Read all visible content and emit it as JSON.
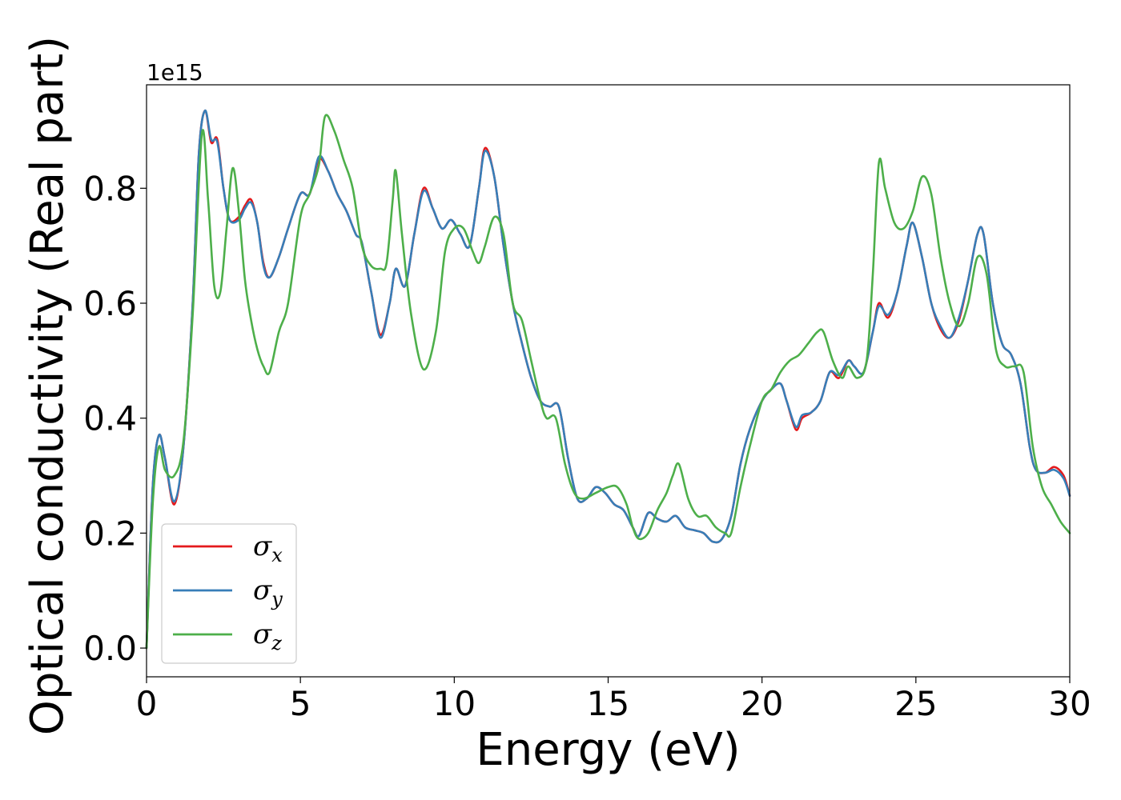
{
  "chart_data": {
    "type": "line",
    "xlabel": "Energy (eV)",
    "ylabel": "Optical conductivity (Real part)",
    "y_offset_label": "1e15",
    "xlim": [
      0,
      30
    ],
    "ylim": [
      -0.05,
      0.98
    ],
    "x_ticks": [
      0,
      5,
      10,
      15,
      20,
      25,
      30
    ],
    "x_tick_labels": [
      "0",
      "5",
      "10",
      "15",
      "20",
      "25",
      "30"
    ],
    "y_ticks": [
      0.0,
      0.2,
      0.4,
      0.6,
      0.8
    ],
    "y_tick_labels": [
      "0.0",
      "0.2",
      "0.4",
      "0.6",
      "0.8"
    ],
    "grid": false,
    "legend_position": "lower-left",
    "series": [
      {
        "name": "σx",
        "symbol": "σ",
        "subscript": "x",
        "color": "#e41a1c",
        "x": [
          0,
          0.2,
          0.4,
          0.6,
          0.9,
          1.2,
          1.5,
          1.7,
          1.9,
          2.1,
          2.3,
          2.5,
          2.7,
          3.0,
          3.2,
          3.4,
          3.6,
          3.8,
          4.0,
          4.3,
          4.6,
          5.0,
          5.3,
          5.6,
          5.9,
          6.2,
          6.5,
          6.8,
          7.0,
          7.3,
          7.6,
          7.9,
          8.1,
          8.4,
          8.7,
          9.0,
          9.3,
          9.6,
          9.9,
          10.2,
          10.5,
          10.8,
          11.0,
          11.3,
          11.6,
          11.9,
          12.2,
          12.5,
          12.8,
          13.1,
          13.4,
          13.7,
          14.0,
          14.3,
          14.6,
          14.9,
          15.2,
          15.5,
          15.8,
          16.0,
          16.3,
          16.6,
          16.9,
          17.2,
          17.5,
          17.8,
          18.1,
          18.4,
          18.7,
          19.0,
          19.3,
          19.6,
          20.0,
          20.3,
          20.6,
          20.8,
          21.1,
          21.3,
          21.6,
          21.9,
          22.2,
          22.5,
          22.8,
          23.0,
          23.3,
          23.6,
          23.8,
          24.1,
          24.4,
          24.7,
          24.9,
          25.2,
          25.5,
          25.8,
          26.1,
          26.4,
          26.7,
          27.0,
          27.2,
          27.5,
          27.8,
          28.1,
          28.4,
          28.7,
          28.9,
          29.2,
          29.5,
          29.8,
          30.0
        ],
        "values": [
          0.0,
          0.28,
          0.37,
          0.33,
          0.25,
          0.35,
          0.6,
          0.86,
          0.935,
          0.88,
          0.885,
          0.8,
          0.745,
          0.75,
          0.77,
          0.78,
          0.74,
          0.67,
          0.645,
          0.68,
          0.73,
          0.79,
          0.79,
          0.85,
          0.83,
          0.79,
          0.76,
          0.72,
          0.705,
          0.62,
          0.545,
          0.6,
          0.66,
          0.63,
          0.72,
          0.8,
          0.765,
          0.73,
          0.745,
          0.72,
          0.7,
          0.8,
          0.87,
          0.82,
          0.7,
          0.6,
          0.53,
          0.47,
          0.43,
          0.42,
          0.42,
          0.33,
          0.26,
          0.26,
          0.28,
          0.27,
          0.25,
          0.24,
          0.21,
          0.195,
          0.235,
          0.225,
          0.22,
          0.23,
          0.21,
          0.205,
          0.2,
          0.185,
          0.19,
          0.23,
          0.32,
          0.38,
          0.43,
          0.45,
          0.46,
          0.43,
          0.38,
          0.4,
          0.41,
          0.43,
          0.48,
          0.47,
          0.5,
          0.49,
          0.48,
          0.55,
          0.6,
          0.575,
          0.62,
          0.7,
          0.74,
          0.68,
          0.6,
          0.555,
          0.54,
          0.57,
          0.64,
          0.72,
          0.72,
          0.6,
          0.53,
          0.51,
          0.46,
          0.35,
          0.31,
          0.305,
          0.315,
          0.3,
          0.265
        ]
      },
      {
        "name": "σy",
        "symbol": "σ",
        "subscript": "y",
        "color": "#377eb8",
        "x": [
          0,
          0.2,
          0.4,
          0.6,
          0.9,
          1.2,
          1.5,
          1.7,
          1.9,
          2.1,
          2.3,
          2.5,
          2.7,
          3.0,
          3.2,
          3.4,
          3.6,
          3.8,
          4.0,
          4.3,
          4.6,
          5.0,
          5.3,
          5.6,
          5.9,
          6.2,
          6.5,
          6.8,
          7.0,
          7.3,
          7.6,
          7.9,
          8.1,
          8.4,
          8.7,
          9.0,
          9.3,
          9.6,
          9.9,
          10.2,
          10.5,
          10.8,
          11.0,
          11.3,
          11.6,
          11.9,
          12.2,
          12.5,
          12.8,
          13.1,
          13.4,
          13.7,
          14.0,
          14.3,
          14.6,
          14.9,
          15.2,
          15.5,
          15.8,
          16.0,
          16.3,
          16.6,
          16.9,
          17.2,
          17.5,
          17.8,
          18.1,
          18.4,
          18.7,
          19.0,
          19.3,
          19.6,
          20.0,
          20.3,
          20.6,
          20.8,
          21.1,
          21.3,
          21.6,
          21.9,
          22.2,
          22.5,
          22.8,
          23.0,
          23.3,
          23.6,
          23.8,
          24.1,
          24.4,
          24.7,
          24.9,
          25.2,
          25.5,
          25.8,
          26.1,
          26.4,
          26.7,
          27.0,
          27.2,
          27.5,
          27.8,
          28.1,
          28.4,
          28.7,
          28.9,
          29.2,
          29.5,
          29.8,
          30.0
        ],
        "values": [
          0.0,
          0.28,
          0.37,
          0.33,
          0.255,
          0.35,
          0.6,
          0.86,
          0.935,
          0.885,
          0.88,
          0.8,
          0.745,
          0.745,
          0.765,
          0.775,
          0.74,
          0.665,
          0.645,
          0.68,
          0.73,
          0.79,
          0.79,
          0.855,
          0.83,
          0.79,
          0.76,
          0.72,
          0.705,
          0.62,
          0.54,
          0.6,
          0.66,
          0.63,
          0.72,
          0.795,
          0.765,
          0.73,
          0.745,
          0.72,
          0.7,
          0.8,
          0.865,
          0.82,
          0.7,
          0.6,
          0.53,
          0.47,
          0.43,
          0.42,
          0.42,
          0.33,
          0.26,
          0.26,
          0.28,
          0.27,
          0.25,
          0.24,
          0.21,
          0.195,
          0.235,
          0.225,
          0.22,
          0.23,
          0.21,
          0.205,
          0.2,
          0.185,
          0.19,
          0.23,
          0.32,
          0.38,
          0.43,
          0.45,
          0.46,
          0.43,
          0.385,
          0.405,
          0.41,
          0.43,
          0.48,
          0.475,
          0.5,
          0.49,
          0.48,
          0.55,
          0.595,
          0.58,
          0.62,
          0.7,
          0.74,
          0.68,
          0.6,
          0.56,
          0.54,
          0.575,
          0.64,
          0.72,
          0.72,
          0.6,
          0.53,
          0.51,
          0.46,
          0.35,
          0.31,
          0.305,
          0.31,
          0.295,
          0.265
        ]
      },
      {
        "name": "σz",
        "symbol": "σ",
        "subscript": "z",
        "color": "#4daf4a",
        "x": [
          0,
          0.2,
          0.4,
          0.6,
          0.9,
          1.2,
          1.5,
          1.8,
          2.0,
          2.2,
          2.4,
          2.6,
          2.8,
          3.0,
          3.2,
          3.4,
          3.6,
          3.8,
          4.0,
          4.3,
          4.6,
          5.0,
          5.3,
          5.6,
          5.8,
          6.1,
          6.4,
          6.7,
          7.0,
          7.3,
          7.6,
          7.8,
          8.0,
          8.1,
          8.3,
          8.6,
          9.0,
          9.4,
          9.7,
          10.0,
          10.3,
          10.6,
          10.8,
          11.0,
          11.3,
          11.6,
          11.9,
          12.2,
          12.5,
          12.8,
          13.0,
          13.3,
          13.6,
          13.9,
          14.2,
          14.6,
          15.0,
          15.3,
          15.6,
          15.8,
          16.0,
          16.3,
          16.6,
          16.9,
          17.1,
          17.3,
          17.6,
          17.9,
          18.2,
          18.5,
          18.8,
          19.0,
          19.3,
          19.6,
          20.0,
          20.3,
          20.6,
          20.9,
          21.2,
          21.5,
          21.8,
          22.0,
          22.3,
          22.6,
          22.8,
          23.1,
          23.4,
          23.6,
          23.8,
          24.0,
          24.3,
          24.6,
          24.9,
          25.2,
          25.5,
          25.8,
          26.1,
          26.4,
          26.7,
          27.0,
          27.3,
          27.6,
          27.9,
          28.2,
          28.5,
          28.8,
          29.1,
          29.4,
          29.7,
          30.0
        ],
        "values": [
          0.0,
          0.25,
          0.35,
          0.31,
          0.3,
          0.36,
          0.58,
          0.895,
          0.78,
          0.63,
          0.62,
          0.73,
          0.835,
          0.76,
          0.64,
          0.57,
          0.52,
          0.49,
          0.48,
          0.55,
          0.6,
          0.75,
          0.79,
          0.84,
          0.925,
          0.9,
          0.85,
          0.8,
          0.7,
          0.665,
          0.66,
          0.67,
          0.78,
          0.83,
          0.72,
          0.58,
          0.485,
          0.55,
          0.69,
          0.73,
          0.73,
          0.69,
          0.67,
          0.7,
          0.75,
          0.72,
          0.6,
          0.57,
          0.5,
          0.43,
          0.4,
          0.4,
          0.32,
          0.27,
          0.26,
          0.27,
          0.28,
          0.28,
          0.25,
          0.21,
          0.19,
          0.2,
          0.24,
          0.27,
          0.3,
          0.32,
          0.26,
          0.23,
          0.23,
          0.21,
          0.2,
          0.2,
          0.28,
          0.35,
          0.43,
          0.45,
          0.48,
          0.5,
          0.51,
          0.53,
          0.55,
          0.55,
          0.5,
          0.47,
          0.49,
          0.47,
          0.5,
          0.65,
          0.845,
          0.8,
          0.74,
          0.73,
          0.76,
          0.82,
          0.79,
          0.68,
          0.6,
          0.56,
          0.6,
          0.68,
          0.65,
          0.52,
          0.49,
          0.49,
          0.48,
          0.35,
          0.28,
          0.25,
          0.22,
          0.2
        ]
      }
    ]
  }
}
